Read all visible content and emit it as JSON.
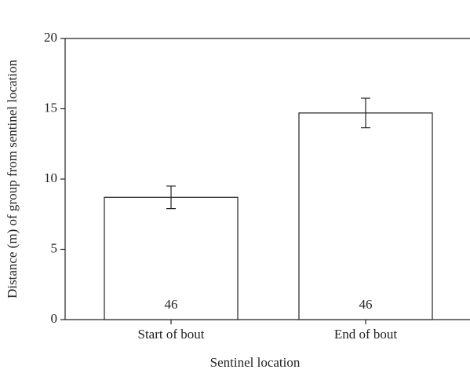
{
  "chart_data": {
    "type": "bar",
    "x_label": "Sentinel location",
    "y_label": "Distance (m) of group from sentinel location",
    "categories": [
      "Start of bout",
      "End of bout"
    ],
    "values": [
      8.7,
      14.7
    ],
    "errors": [
      0.8,
      1.05
    ],
    "annotations": [
      "46",
      "46"
    ],
    "color": "#ffffff",
    "ylim": [
      0,
      20
    ],
    "yticks": [
      0,
      5,
      10,
      15,
      20
    ],
    "grid": false
  }
}
